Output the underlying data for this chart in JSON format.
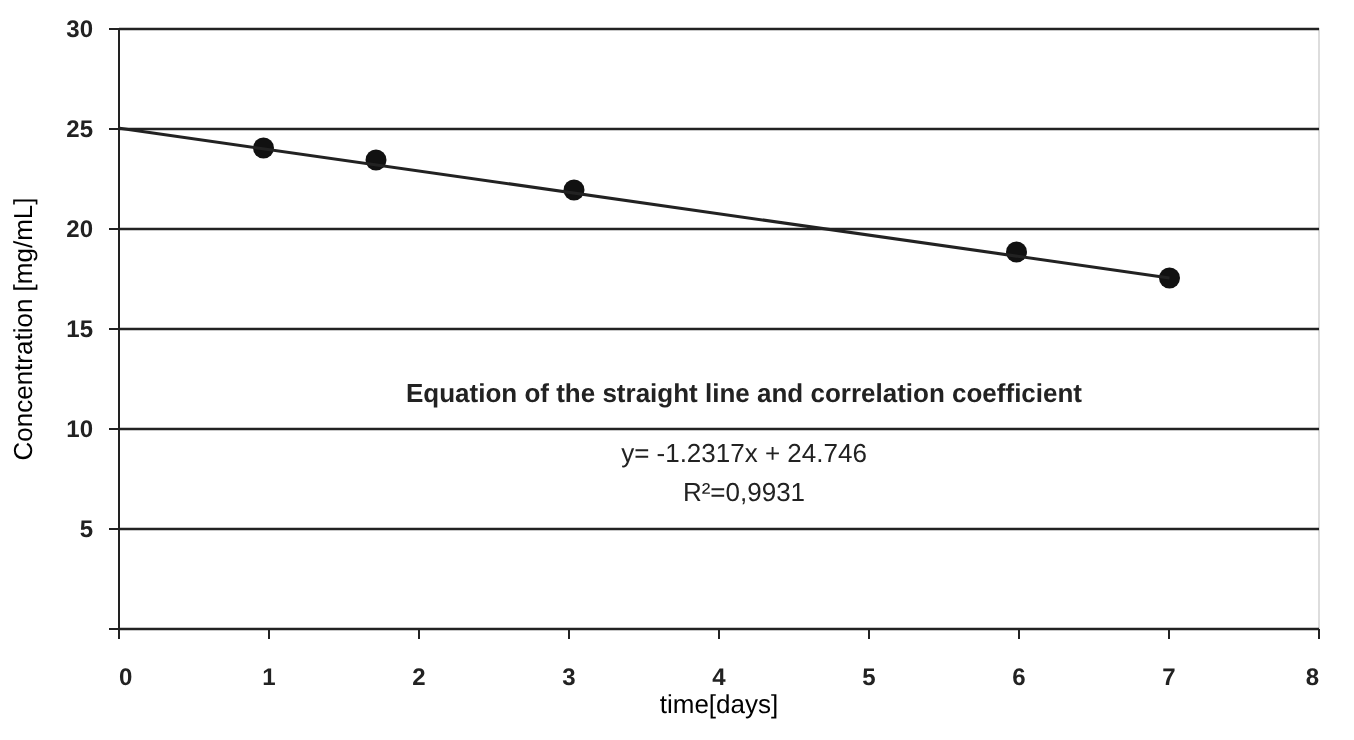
{
  "chart_data": {
    "type": "scatter",
    "xlabel": "time[days]",
    "ylabel": "Concentration [mg/mL]",
    "xlim": [
      0,
      8
    ],
    "xticks": [
      {
        "value": 0,
        "label": "0"
      },
      {
        "value": 1,
        "label": "1"
      },
      {
        "value": 2,
        "label": "2"
      },
      {
        "value": 3,
        "label": "3"
      },
      {
        "value": 4,
        "label": "4"
      },
      {
        "value": 5,
        "label": "5"
      },
      {
        "value": 6,
        "label": "6"
      },
      {
        "value": 7,
        "label": "7"
      },
      {
        "value": 8,
        "label": "8"
      }
    ],
    "ylim": [
      0,
      30
    ],
    "yticks": [
      {
        "value": 0,
        "label": null
      },
      5,
      10,
      15,
      20,
      25,
      30
    ],
    "grid": "y",
    "marker": "circle",
    "series": [
      {
        "color": "#111111",
        "x": [
          0.97,
          1.72,
          3.04,
          5.99,
          7.01
        ],
        "values": [
          24.0,
          23.4,
          21.9,
          18.8,
          17.5
        ]
      },
      {
        "type": "line",
        "color": "#222222",
        "x": [
          0,
          7.01
        ],
        "values": [
          25.0,
          17.5
        ],
        "line_style": "solid",
        "marker": "none"
      }
    ],
    "annotations": [
      "Equation of the straight line and correlation coefficient",
      "y= -1.2317x + 24.746",
      "R²=0,9931"
    ]
  }
}
